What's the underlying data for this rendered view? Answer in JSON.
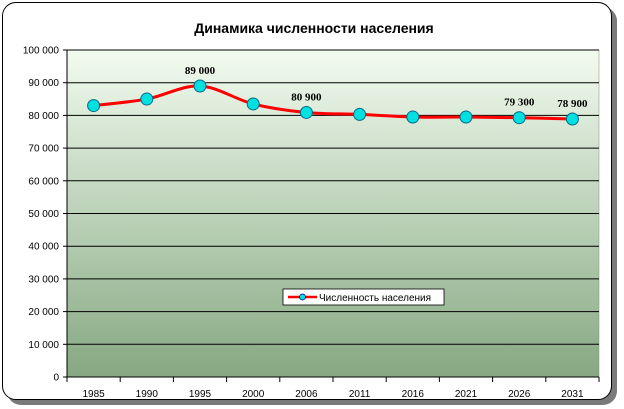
{
  "chart_data": {
    "type": "line",
    "title": "Динамика численности населения",
    "xlabel": "",
    "ylabel": "",
    "categories": [
      "1985",
      "1990",
      "1995",
      "2000",
      "2006",
      "2011",
      "2016",
      "2021",
      "2026",
      "2031"
    ],
    "series": [
      {
        "name": "Численность населения",
        "values": [
          83000,
          85000,
          89000,
          83500,
          80900,
          80300,
          79500,
          79500,
          79300,
          78900
        ],
        "color": "#ff0000",
        "marker_color": "#00e0e0"
      }
    ],
    "ylim": [
      0,
      100000
    ],
    "y_ticks": [
      0,
      10000,
      20000,
      30000,
      40000,
      50000,
      60000,
      70000,
      80000,
      90000,
      100000
    ],
    "y_tick_labels": [
      "0",
      "10 000",
      "20 000",
      "30 000",
      "40 000",
      "50 000",
      "60 000",
      "70 000",
      "80 000",
      "90 000",
      "100 000"
    ],
    "data_labels": [
      {
        "index": 2,
        "text": "89 000"
      },
      {
        "index": 4,
        "text": "80 900"
      },
      {
        "index": 8,
        "text": "79 300"
      },
      {
        "index": 9,
        "text": "78 900"
      }
    ],
    "grid": true,
    "legend_position": "inside-bottom-center",
    "plot_background_top": "#f2fbef",
    "plot_background_bottom": "#86a882"
  }
}
